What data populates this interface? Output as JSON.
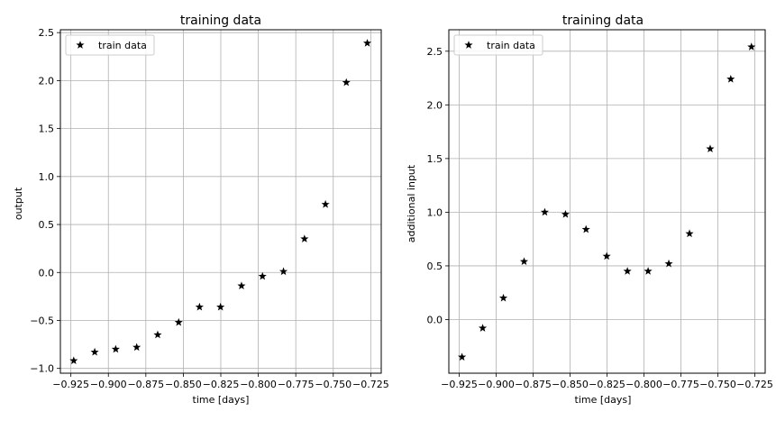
{
  "chart_data": [
    {
      "type": "scatter",
      "title": "training data",
      "xlabel": "time [days]",
      "ylabel": "output",
      "xlim": [
        -0.932,
        -0.718
      ],
      "ylim": [
        -1.05,
        2.53
      ],
      "xticks": [
        -0.925,
        -0.9,
        -0.875,
        -0.85,
        -0.825,
        -0.8,
        -0.775,
        -0.75,
        -0.725
      ],
      "xtick_labels": [
        "−0.925",
        "−0.900",
        "−0.875",
        "−0.850",
        "−0.825",
        "−0.800",
        "−0.775",
        "−0.750",
        "−0.725"
      ],
      "yticks": [
        -1.0,
        -0.5,
        0.0,
        0.5,
        1.0,
        1.5,
        2.0,
        2.5
      ],
      "ytick_labels": [
        "−1.0",
        "−0.5",
        "0.0",
        "0.5",
        "1.0",
        "1.5",
        "2.0",
        "2.5"
      ],
      "grid": true,
      "legend": {
        "position": "top-left",
        "entries": [
          "train data"
        ]
      },
      "marker_color": "#000000",
      "series": [
        {
          "name": "train data",
          "marker": "star",
          "x": [
            -0.9231,
            -0.9091,
            -0.8951,
            -0.8811,
            -0.8671,
            -0.8531,
            -0.8392,
            -0.8252,
            -0.8112,
            -0.7972,
            -0.7832,
            -0.7692,
            -0.7552,
            -0.7413,
            -0.7273
          ],
          "y": [
            -0.92,
            -0.83,
            -0.8,
            -0.78,
            -0.65,
            -0.52,
            -0.36,
            -0.36,
            -0.14,
            -0.04,
            0.01,
            0.35,
            0.71,
            1.98,
            2.39
          ]
        }
      ]
    },
    {
      "type": "scatter",
      "title": "training data",
      "xlabel": "time [days]",
      "ylabel": "additional input",
      "xlim": [
        -0.932,
        -0.718
      ],
      "ylim": [
        -0.5,
        2.7
      ],
      "xticks": [
        -0.925,
        -0.9,
        -0.875,
        -0.85,
        -0.825,
        -0.8,
        -0.775,
        -0.75,
        -0.725
      ],
      "xtick_labels": [
        "−0.925",
        "−0.900",
        "−0.875",
        "−0.850",
        "−0.825",
        "−0.800",
        "−0.775",
        "−0.750",
        "−0.725"
      ],
      "yticks": [
        0.0,
        0.5,
        1.0,
        1.5,
        2.0,
        2.5
      ],
      "ytick_labels": [
        "0.0",
        "0.5",
        "1.0",
        "1.5",
        "2.0",
        "2.5"
      ],
      "grid": true,
      "legend": {
        "position": "top-left",
        "entries": [
          "train data"
        ]
      },
      "marker_color": "#000000",
      "series": [
        {
          "name": "train data",
          "marker": "star",
          "x": [
            -0.9231,
            -0.9091,
            -0.8951,
            -0.8811,
            -0.8671,
            -0.8531,
            -0.8392,
            -0.8252,
            -0.8112,
            -0.7972,
            -0.7832,
            -0.7692,
            -0.7552,
            -0.7413,
            -0.7273
          ],
          "y": [
            -0.35,
            -0.08,
            0.2,
            0.54,
            1.0,
            0.98,
            0.84,
            0.59,
            0.45,
            0.45,
            0.52,
            0.8,
            1.59,
            2.24,
            2.54
          ]
        }
      ]
    }
  ]
}
